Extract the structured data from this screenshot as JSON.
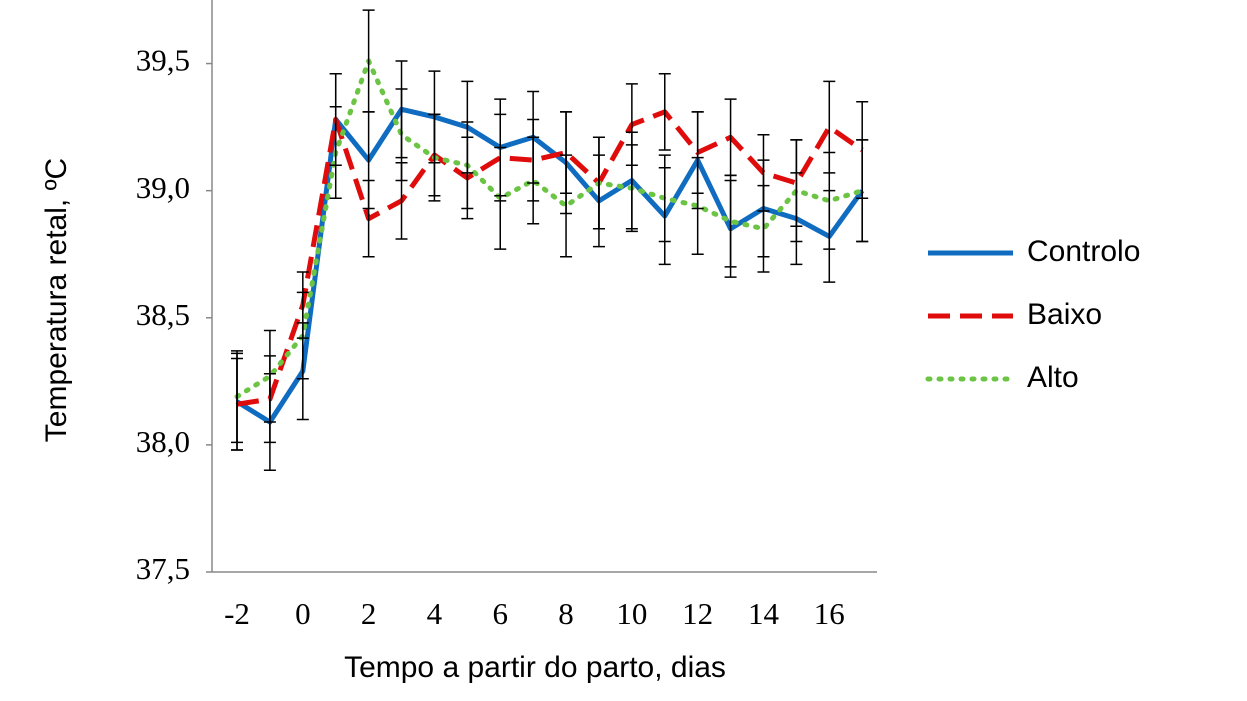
{
  "chart_data": {
    "type": "line",
    "y_label": "Temperatura retal, ºC",
    "x_label": "Tempo a partir do parto, dias",
    "x": [
      -2,
      -1,
      0,
      1,
      2,
      3,
      4,
      5,
      6,
      7,
      8,
      9,
      10,
      11,
      12,
      13,
      14,
      15,
      16,
      17
    ],
    "series": [
      {
        "name": "Controlo",
        "color": "#0f6cc0",
        "style": "solid",
        "values": [
          38.17,
          38.09,
          38.29,
          39.28,
          39.12,
          39.32,
          39.29,
          39.25,
          39.17,
          39.21,
          39.11,
          38.96,
          39.04,
          38.9,
          39.12,
          38.85,
          38.93,
          38.89,
          38.82,
          39.0
        ],
        "errors": [
          0.19,
          0.19,
          0.19,
          0.18,
          0.19,
          0.19,
          0.18,
          0.18,
          0.19,
          0.18,
          0.2,
          0.18,
          0.19,
          0.19,
          0.19,
          0.19,
          0.19,
          0.18,
          0.18,
          0.2
        ]
      },
      {
        "name": "Baixo",
        "color": "#e00b0b",
        "style": "dashed",
        "values": [
          38.16,
          38.18,
          38.55,
          39.28,
          38.89,
          38.96,
          39.14,
          39.05,
          39.13,
          39.12,
          39.15,
          39.03,
          39.26,
          39.31,
          39.15,
          39.21,
          39.07,
          39.03,
          39.25,
          39.16
        ],
        "errors": [
          0.18,
          0.17,
          0.13,
          0.18,
          0.15,
          0.15,
          0.16,
          0.16,
          0.17,
          0.16,
          0.16,
          0.18,
          0.16,
          0.15,
          0.16,
          0.15,
          0.15,
          0.17,
          0.18,
          0.19
        ]
      },
      {
        "name": "Alto",
        "color": "#6cc444",
        "style": "dotted",
        "values": [
          38.19,
          38.27,
          38.43,
          39.15,
          39.51,
          39.22,
          39.13,
          39.1,
          38.97,
          39.04,
          38.94,
          39.03,
          39.01,
          38.97,
          38.94,
          38.88,
          38.85,
          39.0,
          38.96,
          39.0
        ],
        "errors": [
          0.18,
          0.18,
          0.17,
          0.18,
          0.2,
          0.18,
          0.17,
          0.17,
          0.2,
          0.17,
          0.2,
          0.18,
          0.17,
          0.17,
          0.19,
          0.18,
          0.17,
          0.2,
          0.19,
          0.2
        ]
      }
    ],
    "xlim": [
      -2.76,
      17.45
    ],
    "ylim": [
      37.5,
      39.75
    ],
    "xticks": [
      -2,
      0,
      2,
      4,
      6,
      8,
      10,
      12,
      14,
      16
    ],
    "yticks": [
      {
        "value": 37.5,
        "label": "37,5"
      },
      {
        "value": 38.0,
        "label": "38,0"
      },
      {
        "value": 38.5,
        "label": "38,5"
      },
      {
        "value": 39.0,
        "label": "39,0"
      },
      {
        "value": 39.5,
        "label": "39,5"
      }
    ],
    "legend": "right",
    "error_bars": true
  }
}
